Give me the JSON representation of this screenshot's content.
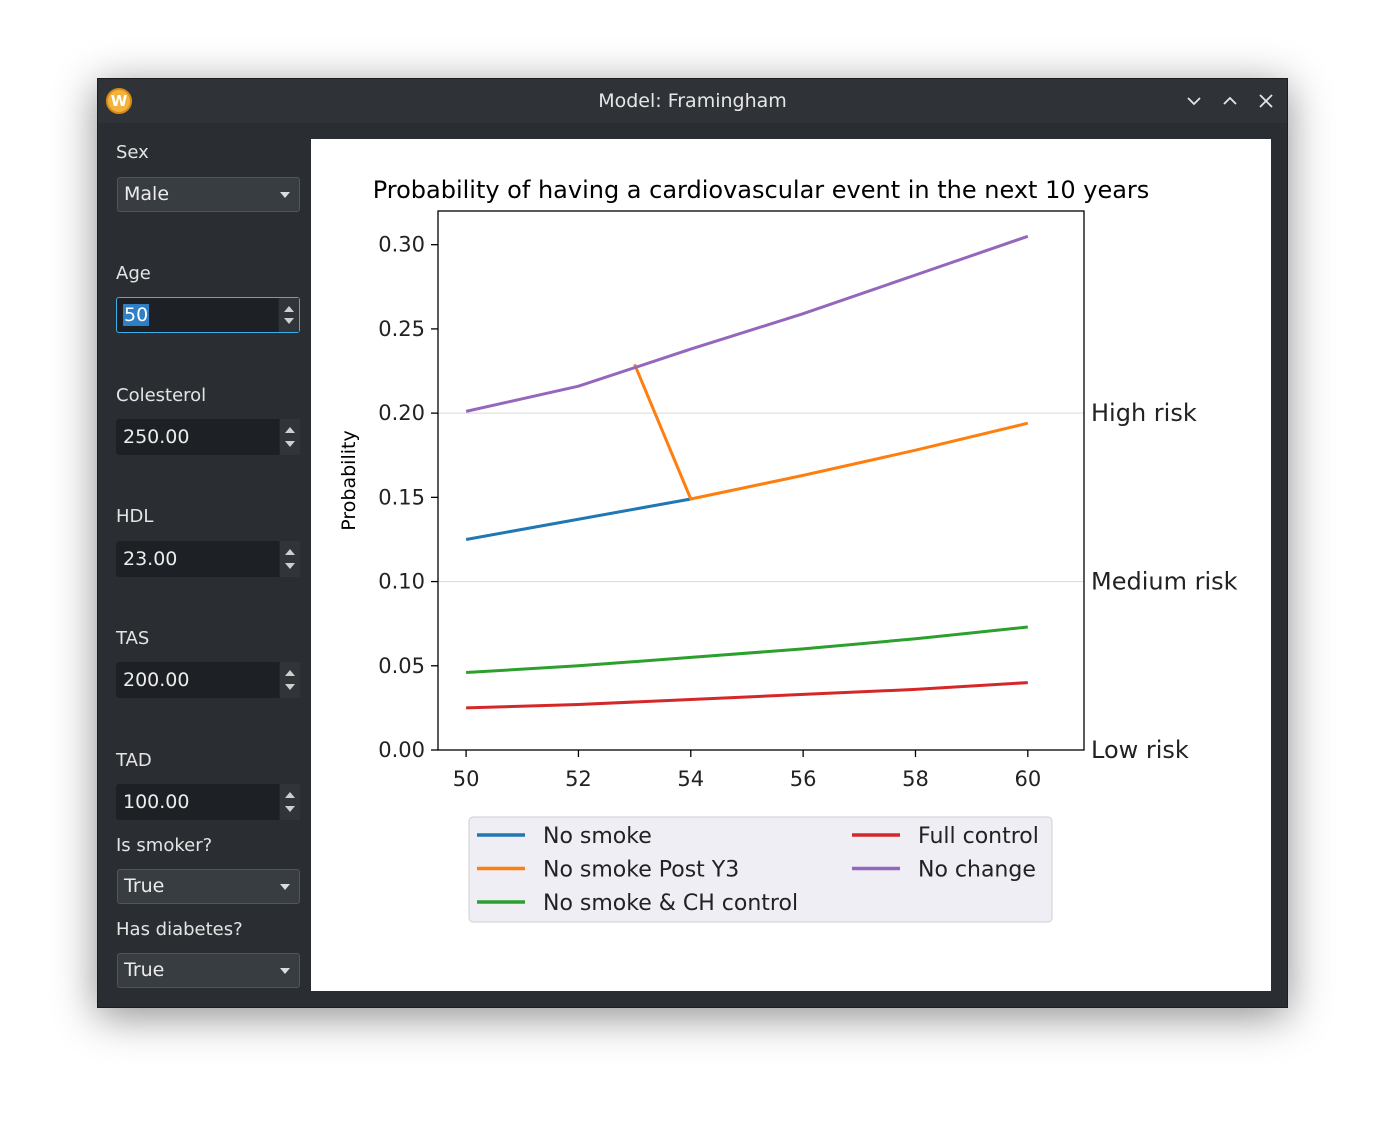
{
  "window": {
    "title": "Model: Framingham",
    "icon_letter": "W",
    "icon_color": "#f2b33d"
  },
  "controls": {
    "sex": {
      "label": "Sex",
      "value": "Male"
    },
    "age": {
      "label": "Age",
      "value": "50"
    },
    "colesterol": {
      "label": "Colesterol",
      "value": "250.00"
    },
    "hdl": {
      "label": "HDL",
      "value": "23.00"
    },
    "tas": {
      "label": "TAS",
      "value": "200.00"
    },
    "tad": {
      "label": "TAD",
      "value": "100.00"
    },
    "smoker": {
      "label": "Is smoker?",
      "value": "True"
    },
    "diabetes": {
      "label": "Has diabetes?",
      "value": "True"
    }
  },
  "chart_data": {
    "type": "line",
    "title": "Probability of having a cardiovascular event in the next 10 years",
    "xlabel": "",
    "ylabel": "Probability",
    "xlim": [
      49.5,
      61.0
    ],
    "ylim": [
      0.0,
      0.32
    ],
    "xticks": [
      "50",
      "52",
      "54",
      "56",
      "58",
      "60"
    ],
    "yticks": [
      "0.00",
      "0.05",
      "0.10",
      "0.15",
      "0.20",
      "0.25",
      "0.30"
    ],
    "grid": "horizontal at risk thresholds",
    "risk_levels": [
      {
        "label": "High risk",
        "y": 0.2
      },
      {
        "label": "Medium risk",
        "y": 0.1
      },
      {
        "label": "Low risk",
        "y": 0.0
      }
    ],
    "legend_placement": "below",
    "series": [
      {
        "name": "No smoke",
        "color": "#1f77b4",
        "points": [
          [
            50,
            0.125
          ],
          [
            54,
            0.149
          ]
        ]
      },
      {
        "name": "No smoke Post Y3",
        "color": "#ff7f0e",
        "points": [
          [
            53,
            0.229
          ],
          [
            54,
            0.149
          ],
          [
            56,
            0.163
          ],
          [
            58,
            0.178
          ],
          [
            60,
            0.194
          ]
        ]
      },
      {
        "name": "No smoke & CH control",
        "color": "#2ca02c",
        "points": [
          [
            50,
            0.046
          ],
          [
            52,
            0.05
          ],
          [
            54,
            0.055
          ],
          [
            56,
            0.06
          ],
          [
            58,
            0.066
          ],
          [
            60,
            0.073
          ]
        ]
      },
      {
        "name": "Full control",
        "color": "#d62728",
        "points": [
          [
            50,
            0.025
          ],
          [
            52,
            0.027
          ],
          [
            54,
            0.03
          ],
          [
            56,
            0.033
          ],
          [
            58,
            0.036
          ],
          [
            60,
            0.04
          ]
        ]
      },
      {
        "name": "No change",
        "color": "#9467bd",
        "points": [
          [
            50,
            0.201
          ],
          [
            52,
            0.216
          ],
          [
            54,
            0.238
          ],
          [
            56,
            0.259
          ],
          [
            58,
            0.282
          ],
          [
            60,
            0.305
          ]
        ]
      }
    ]
  }
}
